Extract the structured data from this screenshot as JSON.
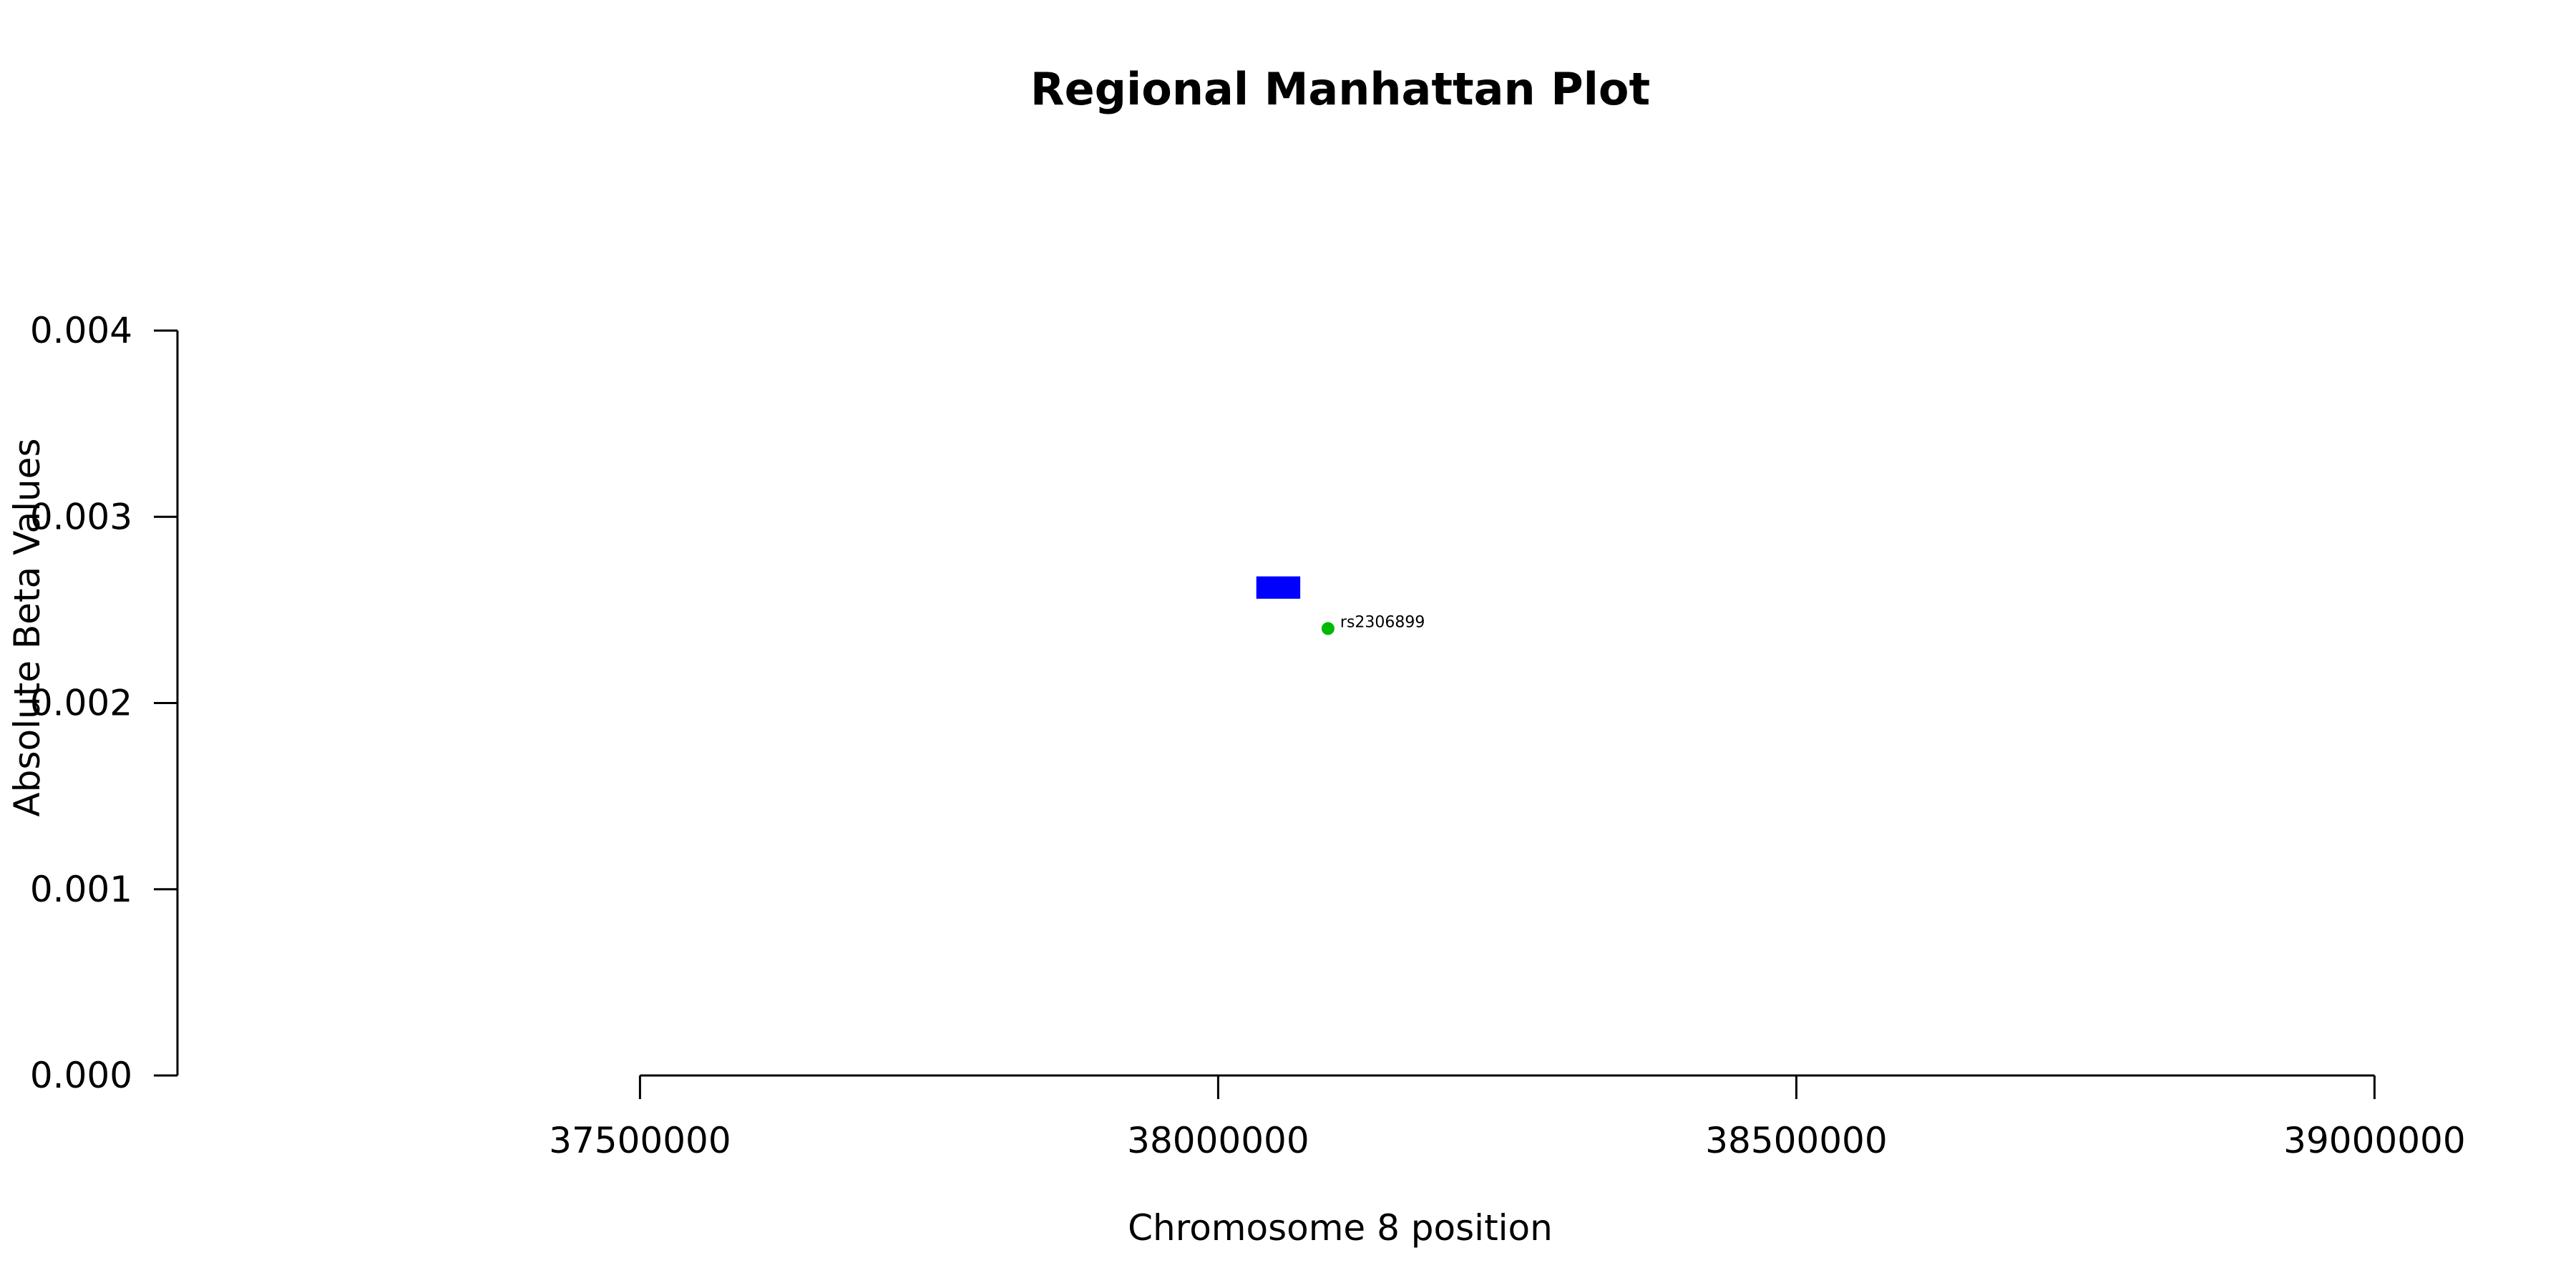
{
  "chart_data": {
    "type": "scatter",
    "title": "Regional Manhattan Plot",
    "xlabel": "Chromosome 8 position",
    "ylabel": "Absolute Beta Values",
    "xlim": [
      37100000,
      39100000
    ],
    "ylim": [
      0,
      0.004
    ],
    "x_ticks": [
      37500000,
      38000000,
      38500000,
      39000000
    ],
    "x_tick_labels": [
      "37500000",
      "38000000",
      "38500000",
      "39000000"
    ],
    "y_ticks": [
      0,
      0.001,
      0.002,
      0.003,
      0.004
    ],
    "y_tick_labels": [
      "0.000",
      "0.001",
      "0.002",
      "0.003",
      "0.004"
    ],
    "grid": false,
    "regions": [
      {
        "x_start": 38033000,
        "x_end": 38071000,
        "y_low": 0.00256,
        "y_high": 0.00268,
        "color": "#0000ff"
      }
    ],
    "points": [
      {
        "x": 38095000,
        "y": 0.0024,
        "label": "rs2306899",
        "color": "#00b800"
      }
    ]
  }
}
